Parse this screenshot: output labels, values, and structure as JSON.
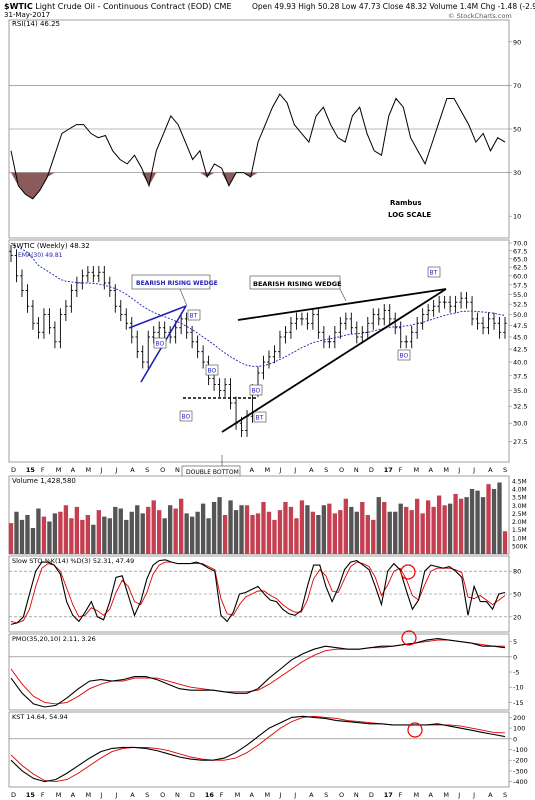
{
  "header": {
    "symbol": "$WTIC",
    "description": "Light Crude Oil - Continuous Contract (EOD)",
    "exchange": "CME",
    "date": "31-May-2017",
    "open": "Open 49.93",
    "high": "High 50.28",
    "low": "Low 47.73",
    "close": "Close 48.32",
    "volume": "Volume 1.4M",
    "change": "Chg -1.48 (-2.97%)",
    "change_arrow": "▼",
    "copyright": "© StockCharts.com"
  },
  "colors": {
    "up": "#c44050",
    "down": "#333333",
    "rsi_fill": "#8b5a5a",
    "ema": "#2222aa",
    "signal": "#dd0000",
    "annot": "#2222bb"
  },
  "annotations": {
    "rambus": "Rambus",
    "log_scale": "LOG SCALE",
    "wedge1": "BEARISH RISING WEDGE",
    "wedge2": "BEARISH RISING WEDGE",
    "double_bottom": "DOUBLE BOTTOM",
    "bo": "BO",
    "bt": "BT"
  },
  "chart_data": [
    {
      "type": "line",
      "panel": "rsi",
      "legend": "RSI(14) 46.25",
      "ylim": [
        0,
        100
      ],
      "ticks": [
        "10",
        "30",
        "50",
        "70",
        "90"
      ],
      "tick_values": [
        10,
        30,
        50,
        70,
        90
      ],
      "reference_lines": [
        30,
        50,
        70
      ],
      "series": [
        {
          "name": "RSI(14)",
          "values": [
            40,
            24,
            20,
            18,
            22,
            28,
            38,
            48,
            50,
            52,
            52,
            48,
            46,
            47,
            40,
            36,
            34,
            38,
            32,
            24,
            40,
            48,
            56,
            52,
            44,
            36,
            40,
            28,
            34,
            32,
            24,
            30,
            30,
            28,
            44,
            52,
            60,
            66,
            62,
            52,
            48,
            44,
            56,
            60,
            52,
            46,
            44,
            56,
            60,
            48,
            40,
            38,
            56,
            64,
            60,
            46,
            40,
            34,
            44,
            54,
            64,
            64,
            58,
            52,
            44,
            48,
            40,
            46,
            44
          ]
        }
      ]
    },
    {
      "type": "bar",
      "panel": "price",
      "legend": "$WTIC (Weekly) 48.32",
      "ema_legend": "EMA(30) 49.81",
      "scale": "log",
      "ylim": [
        25,
        71
      ],
      "ticks": [
        "27.5",
        "30.0",
        "32.5",
        "35.0",
        "37.5",
        "40.0",
        "42.5",
        "45.0",
        "47.5",
        "50.0",
        "52.5",
        "55.0",
        "57.5",
        "60.0",
        "62.5",
        "65.0",
        "67.5",
        "70.0"
      ],
      "tick_values": [
        27.5,
        30,
        32.5,
        35,
        37.5,
        40,
        42.5,
        45,
        47.5,
        50,
        52.5,
        55,
        57.5,
        60,
        62.5,
        65,
        67.5,
        70
      ],
      "x_labels": [
        "D",
        "15",
        "F",
        "M",
        "A",
        "M",
        "J",
        "J",
        "A",
        "S",
        "O",
        "N",
        "D",
        "16",
        "F",
        "M",
        "A",
        "M",
        "J",
        "J",
        "A",
        "S",
        "O",
        "N",
        "D",
        "17",
        "F",
        "M",
        "A",
        "M",
        "J",
        "J",
        "A",
        "S"
      ],
      "series": [
        {
          "name": "close",
          "values": [
            66,
            60,
            56,
            52,
            48,
            46,
            50,
            47,
            44,
            50,
            52,
            56,
            58,
            60,
            61,
            60,
            61,
            58,
            56,
            52,
            50,
            48,
            45,
            42,
            40,
            45,
            46,
            47,
            46,
            45,
            47,
            49,
            46,
            44,
            42,
            40,
            37,
            36,
            35,
            36,
            33,
            30,
            29,
            31,
            35,
            38,
            40,
            41,
            42,
            45,
            46,
            48,
            49,
            49,
            48,
            50,
            46,
            44,
            44,
            46,
            48,
            49,
            47,
            45,
            46,
            48,
            50,
            49,
            51,
            49,
            47,
            44,
            44,
            46,
            48,
            50,
            51,
            52,
            53,
            53,
            52,
            53,
            54,
            53,
            49,
            48,
            47,
            49,
            48,
            46,
            48
          ]
        },
        {
          "name": "EMA(30)",
          "values": [
            70,
            69,
            68,
            67,
            65,
            63,
            62,
            61,
            60,
            59,
            58.5,
            58.3,
            58.1,
            58,
            58,
            57.9,
            57.7,
            57.4,
            57,
            56.5,
            55.8,
            55,
            54,
            53,
            52,
            51.2,
            50.5,
            50,
            49.5,
            49,
            48.5,
            48,
            47.3,
            46.6,
            45.8,
            45,
            44.2,
            43.4,
            42.5,
            41.7,
            41,
            40.4,
            39.8,
            39.4,
            39.2,
            39.2,
            39.3,
            39.6,
            40,
            40.5,
            41,
            41.6,
            42.2,
            42.8,
            43.3,
            43.8,
            44.1,
            44.4,
            44.6,
            44.8,
            45.1,
            45.4,
            45.6,
            45.7,
            45.8,
            46,
            46.3,
            46.6,
            46.9,
            47.1,
            47.2,
            47.3,
            47.4,
            47.6,
            47.9,
            48.2,
            48.6,
            49,
            49.4,
            49.8,
            50.1,
            50.4,
            50.7,
            50.8,
            50.8,
            50.7,
            50.6,
            50.5,
            50.3,
            50,
            49.8
          ]
        }
      ]
    },
    {
      "type": "bar",
      "panel": "volume",
      "legend": "Volume 1,428,580",
      "ylim": [
        0,
        4.8
      ],
      "ticks": [
        "500K",
        "1.0M",
        "1.5M",
        "2.0M",
        "2.5M",
        "3.0M",
        "3.5M",
        "4.0M",
        "4.5M"
      ],
      "tick_values": [
        0.5,
        1,
        1.5,
        2,
        2.5,
        3,
        3.5,
        4,
        4.5
      ],
      "values": [
        1.9,
        2.6,
        2.1,
        2.4,
        1.6,
        2.8,
        2.3,
        2.0,
        2.5,
        2.6,
        3.0,
        2.2,
        2.9,
        2.1,
        2.4,
        1.8,
        2.7,
        2.3,
        2.2,
        2.9,
        2.8,
        2.1,
        2.6,
        3.0,
        2.5,
        2.9,
        3.3,
        2.7,
        2.2,
        3.0,
        2.8,
        3.4,
        2.5,
        2.3,
        2.6,
        3.1,
        2.2,
        3.2,
        3.5,
        2.4,
        3.3,
        2.7,
        3.0,
        3.0,
        2.4,
        2.5,
        3.2,
        2.6,
        2.1,
        2.7,
        3.2,
        2.9,
        2.2,
        3.3,
        3.0,
        2.6,
        2.4,
        3.0,
        3.1,
        2.5,
        2.7,
        3.4,
        2.9,
        2.6,
        3.2,
        2.4,
        2.1,
        3.5,
        3.2,
        2.6,
        2.6,
        3.1,
        2.9,
        2.7,
        3.4,
        2.5,
        3.3,
        2.9,
        3.6,
        3.0,
        3.1,
        3.7,
        3.4,
        3.5,
        4.0,
        3.9,
        3.5,
        4.3,
        4.0,
        4.4,
        1.4
      ]
    },
    {
      "type": "line",
      "panel": "stochastic",
      "legend": "Slow STO %K(14) %D(3) 52.31, 47.49",
      "ylim": [
        0,
        100
      ],
      "ticks": [
        "20",
        "50",
        "80"
      ],
      "tick_values": [
        20,
        50,
        80
      ],
      "reference_lines": [
        20,
        50,
        80
      ],
      "series": [
        {
          "name": "%K",
          "values": [
            10,
            12,
            20,
            50,
            80,
            92,
            92,
            88,
            76,
            40,
            22,
            14,
            26,
            40,
            20,
            16,
            40,
            72,
            74,
            48,
            22,
            40,
            70,
            88,
            94,
            95,
            92,
            90,
            90,
            90,
            92,
            89,
            84,
            80,
            22,
            14,
            26,
            50,
            52,
            56,
            60,
            50,
            42,
            40,
            30,
            24,
            22,
            28,
            60,
            88,
            88,
            60,
            40,
            58,
            82,
            92,
            94,
            88,
            82,
            60,
            36,
            80,
            90,
            82,
            55,
            30,
            42,
            80,
            88,
            86,
            84,
            86,
            80,
            72,
            22,
            60,
            40,
            40,
            30,
            50,
            52
          ]
        },
        {
          "name": "%D",
          "values": [
            14,
            12,
            15,
            30,
            60,
            84,
            90,
            88,
            80,
            58,
            36,
            20,
            22,
            32,
            28,
            22,
            30,
            52,
            68,
            60,
            40,
            36,
            52,
            76,
            88,
            92,
            92,
            90,
            90,
            90,
            90,
            90,
            86,
            82,
            44,
            24,
            22,
            36,
            46,
            50,
            54,
            54,
            48,
            44,
            36,
            30,
            26,
            26,
            42,
            70,
            82,
            74,
            54,
            52,
            70,
            86,
            92,
            90,
            86,
            72,
            48,
            62,
            80,
            84,
            70,
            48,
            42,
            62,
            80,
            84,
            84,
            84,
            82,
            78,
            46,
            44,
            48,
            42,
            36,
            42,
            48
          ]
        }
      ]
    },
    {
      "type": "line",
      "panel": "pmo",
      "legend": "PMO(35,20,10) 2.11, 3.26",
      "ylim": [
        -17.5,
        7.5
      ],
      "ticks": [
        "-15",
        "-10",
        "-5",
        "0",
        "5"
      ],
      "tick_values": [
        -15,
        -10,
        -5,
        0,
        5
      ],
      "reference_lines": [
        0
      ],
      "series": [
        {
          "name": "PMO",
          "values": [
            -7,
            -12,
            -15.5,
            -16.5,
            -16,
            -13.5,
            -10.5,
            -8,
            -7.5,
            -8,
            -7.5,
            -6.5,
            -6.5,
            -7.5,
            -9,
            -10.5,
            -11,
            -11,
            -11,
            -11.5,
            -12,
            -12,
            -10.5,
            -7,
            -4,
            -1,
            1,
            2.5,
            3.5,
            3,
            2.5,
            2.5,
            3,
            3.5,
            3.5,
            4,
            4.5,
            5.5,
            6,
            5.5,
            5,
            4.5,
            3.5,
            3.5,
            3
          ]
        },
        {
          "name": "Signal",
          "values": [
            -4,
            -9,
            -13,
            -15,
            -15.5,
            -15,
            -13,
            -10.5,
            -9,
            -8,
            -8,
            -7,
            -7,
            -7,
            -8,
            -9,
            -10,
            -10.5,
            -11,
            -11.5,
            -11.5,
            -11.5,
            -11,
            -9,
            -6.5,
            -4,
            -1.5,
            0.5,
            2,
            2.5,
            2.5,
            2.5,
            3,
            3,
            3.5,
            4,
            4.5,
            5,
            5.5,
            5.5,
            5,
            4.5,
            4,
            3.5,
            3.5
          ]
        }
      ]
    },
    {
      "type": "line",
      "panel": "kst",
      "legend": "KST 14.64, 54.94",
      "ylim": [
        -450,
        250
      ],
      "ticks": [
        "-400",
        "-300",
        "-200",
        "-100",
        "0",
        "100",
        "200"
      ],
      "tick_values": [
        -400,
        -300,
        -200,
        -100,
        0,
        100,
        200
      ],
      "reference_lines": [
        0
      ],
      "series": [
        {
          "name": "KST",
          "values": [
            -200,
            -300,
            -370,
            -400,
            -380,
            -320,
            -250,
            -180,
            -120,
            -90,
            -80,
            -80,
            -90,
            -110,
            -140,
            -170,
            -190,
            -200,
            -200,
            -180,
            -130,
            -60,
            20,
            100,
            150,
            200,
            210,
            200,
            190,
            170,
            160,
            150,
            140,
            140,
            130,
            130,
            130,
            130,
            140,
            120,
            100,
            80,
            60,
            40,
            20
          ]
        },
        {
          "name": "Signal",
          "values": [
            -150,
            -250,
            -330,
            -390,
            -400,
            -380,
            -320,
            -250,
            -180,
            -120,
            -90,
            -80,
            -80,
            -90,
            -110,
            -140,
            -170,
            -190,
            -200,
            -200,
            -180,
            -130,
            -60,
            20,
            100,
            160,
            200,
            210,
            200,
            190,
            170,
            160,
            150,
            140,
            130,
            130,
            130,
            130,
            130,
            130,
            120,
            100,
            80,
            60,
            55
          ]
        }
      ]
    }
  ]
}
